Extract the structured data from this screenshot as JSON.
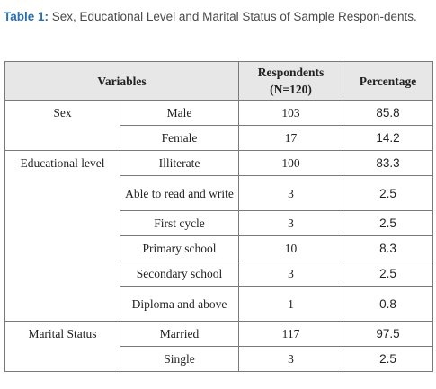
{
  "caption": {
    "label": "Table 1:",
    "text": " Sex, Educational Level and Marital Status of Sample Respon-dents."
  },
  "table": {
    "headers": {
      "variables": "Variables",
      "respondents": "Respondents (N=120)",
      "percentage": "Percentage"
    },
    "groups": {
      "sex": "Sex",
      "education": "Educational level",
      "marital": "Marital Status"
    },
    "rows": [
      {
        "category": "Male",
        "respondents": "103",
        "percentage": "85.8"
      },
      {
        "category": "Female",
        "respondents": "17",
        "percentage": "14.2"
      },
      {
        "category": "Illiterate",
        "respondents": "100",
        "percentage": "83.3"
      },
      {
        "category": "Able to read and write",
        "respondents": "3",
        "percentage": "2.5"
      },
      {
        "category": "First cycle",
        "respondents": "3",
        "percentage": "2.5"
      },
      {
        "category": "Primary school",
        "respondents": "10",
        "percentage": "8.3"
      },
      {
        "category": "Secondary school",
        "respondents": "3",
        "percentage": "2.5"
      },
      {
        "category": "Diploma and above",
        "respondents": "1",
        "percentage": "0.8"
      },
      {
        "category": "Married",
        "respondents": "117",
        "percentage": "97.5"
      },
      {
        "category": "Single",
        "respondents": "3",
        "percentage": "2.5"
      }
    ]
  }
}
